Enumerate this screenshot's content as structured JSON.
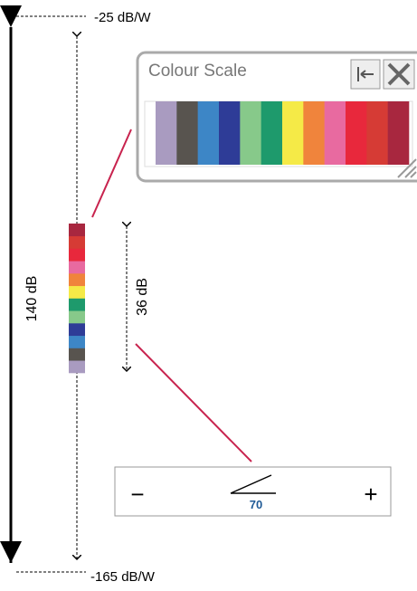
{
  "labels": {
    "top": "-25 dB/W",
    "bottom": "-165 dB/W",
    "range": "140 dB",
    "window": "36 dB"
  },
  "panel": {
    "title": "Colour Scale",
    "swatches": [
      "#a99bc0",
      "#58544f",
      "#3d86c6",
      "#2e3c97",
      "#87c98a",
      "#1e9a6c",
      "#f5ea47",
      "#f0843c",
      "#e86aa0",
      "#e8283c",
      "#d63b35",
      "#a8273f"
    ]
  },
  "slider": {
    "minus": "−",
    "plus": "+",
    "value": "70"
  }
}
